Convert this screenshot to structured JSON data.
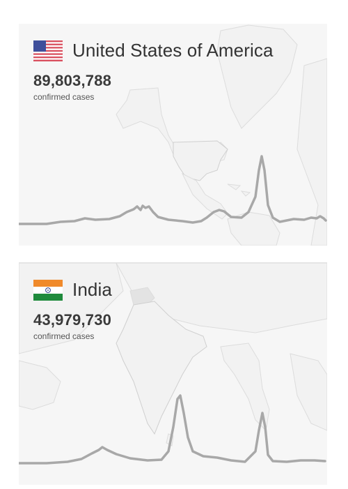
{
  "cards": [
    {
      "country": "United States of America",
      "count": "89,803,788",
      "caption": "confirmed cases",
      "flag_icon": "us-flag-icon",
      "curve_color": "#a8a8a8"
    },
    {
      "country": "India",
      "count": "43,979,730",
      "caption": "confirmed cases",
      "flag_icon": "india-flag-icon",
      "curve_color": "#a8a8a8"
    }
  ],
  "colors": {
    "card_background": "#f6f6f6",
    "map_land": "#f2f2f2",
    "map_border": "#dcdcdc",
    "text_primary": "#333333"
  }
}
